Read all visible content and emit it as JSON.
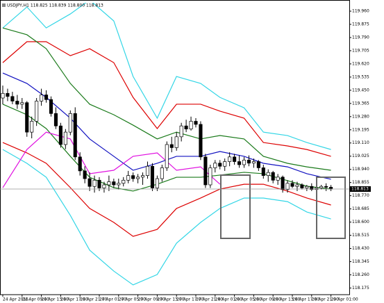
{
  "chart_data": {
    "type": "candlestick",
    "title": "USDJPY,H1  118.825 118.839 118.800 118.813",
    "categories": [
      "24 Apr 2015",
      null,
      null,
      null,
      "24 Apr 09:00",
      null,
      null,
      null,
      "24 Apr 13:00",
      null,
      null,
      null,
      "24 Apr 17:00",
      null,
      null,
      null,
      "24 Apr 21:00",
      null,
      null,
      null,
      "27 Apr 01:00",
      null,
      null,
      null,
      "27 Apr 05:00",
      null,
      null,
      null,
      "27 Apr 09:00",
      null,
      null,
      null,
      "27 Apr 13:00",
      null,
      null,
      null,
      "27 Apr 17:00",
      null,
      null,
      null,
      "27 Apr 21:00",
      null,
      null,
      null,
      "28 Apr 01:00",
      null,
      null,
      null,
      "28 Apr 05:00",
      null,
      null,
      null,
      "28 Apr 09:00",
      null,
      null,
      null,
      "28 Apr 13:00",
      null,
      null,
      null,
      "28 Apr 17:00",
      null,
      null,
      null,
      "28 Apr 21:00",
      null,
      null,
      null,
      "29 Apr 01:00"
    ],
    "open": [
      119.4,
      119.43,
      119.41,
      119.38,
      119.36,
      119.37,
      119.18,
      119.25,
      119.38,
      119.42,
      119.39,
      119.3,
      119.22,
      119.1,
      119.18,
      119.3,
      119.02,
      118.93,
      118.88,
      118.83,
      118.87,
      118.82,
      118.84,
      118.86,
      118.84,
      118.85,
      118.87,
      118.9,
      118.88,
      118.89,
      118.9,
      118.96,
      118.82,
      118.88,
      118.95,
      119.1,
      119.08,
      119.15,
      119.22,
      119.2,
      119.25,
      119.23,
      119.02,
      118.84,
      118.95,
      118.98,
      118.96,
      118.99,
      119.02,
      118.99,
      118.97,
      119.0,
      118.98,
      118.99,
      118.95,
      118.9,
      118.92,
      118.87,
      118.89,
      118.81,
      118.85,
      118.83,
      118.84,
      118.82,
      118.83,
      118.81,
      118.82,
      118.83,
      118.825
    ],
    "high": [
      119.48,
      119.46,
      119.44,
      119.42,
      119.4,
      119.38,
      119.28,
      119.4,
      119.46,
      119.45,
      119.41,
      119.34,
      119.24,
      119.2,
      119.32,
      119.34,
      119.05,
      118.96,
      118.92,
      118.9,
      118.89,
      118.86,
      118.9,
      118.88,
      118.88,
      118.89,
      118.93,
      118.92,
      118.91,
      118.92,
      118.99,
      118.98,
      118.9,
      118.97,
      119.12,
      119.15,
      119.18,
      119.24,
      119.26,
      119.28,
      119.27,
      119.25,
      119.04,
      118.97,
      119.0,
      119.0,
      119.01,
      119.05,
      119.04,
      119.03,
      119.02,
      119.03,
      119.01,
      119.0,
      118.97,
      118.94,
      118.93,
      118.91,
      118.9,
      118.87,
      118.87,
      118.86,
      118.85,
      118.84,
      118.85,
      118.84,
      118.84,
      118.85,
      118.839
    ],
    "low": [
      119.36,
      119.38,
      119.36,
      119.33,
      119.33,
      119.15,
      119.14,
      119.22,
      119.35,
      119.37,
      119.28,
      119.2,
      119.08,
      119.07,
      119.16,
      119.0,
      118.9,
      118.85,
      118.8,
      118.79,
      118.8,
      118.79,
      118.8,
      118.82,
      118.81,
      118.83,
      118.85,
      118.86,
      118.85,
      118.84,
      118.88,
      118.8,
      118.8,
      118.86,
      118.93,
      119.05,
      119.06,
      119.12,
      119.18,
      119.19,
      119.21,
      119.0,
      118.82,
      118.82,
      118.92,
      118.94,
      118.93,
      118.96,
      118.97,
      118.95,
      118.95,
      118.96,
      118.95,
      118.93,
      118.88,
      118.86,
      118.85,
      118.84,
      118.79,
      118.79,
      118.82,
      118.8,
      118.81,
      118.8,
      118.8,
      118.8,
      118.81,
      118.8,
      118.8
    ],
    "close": [
      119.43,
      119.41,
      119.38,
      119.36,
      119.37,
      119.18,
      119.25,
      119.38,
      119.42,
      119.39,
      119.3,
      119.22,
      119.1,
      119.18,
      119.3,
      119.02,
      118.93,
      118.88,
      118.83,
      118.87,
      118.82,
      118.84,
      118.86,
      118.84,
      118.85,
      118.87,
      118.9,
      118.88,
      118.89,
      118.9,
      118.96,
      118.82,
      118.88,
      118.95,
      119.1,
      119.08,
      119.15,
      119.22,
      119.2,
      119.25,
      119.23,
      119.02,
      118.84,
      118.95,
      118.98,
      118.96,
      118.99,
      119.02,
      118.99,
      118.97,
      119.0,
      118.98,
      118.99,
      118.95,
      118.9,
      118.92,
      118.87,
      118.89,
      118.81,
      118.85,
      118.83,
      118.84,
      118.82,
      118.83,
      118.81,
      118.82,
      118.83,
      118.825,
      118.813
    ],
    "line_x": [
      0,
      5,
      9,
      14,
      18,
      23,
      27,
      32,
      36,
      41,
      45,
      50,
      54,
      59,
      63,
      68
    ],
    "lines": [
      {
        "color": "#33d6e6",
        "values": [
          119.852,
          119.987,
          119.852,
          119.942,
          120.032,
          119.897,
          119.539,
          119.27,
          119.539,
          119.494,
          119.404,
          119.337,
          119.18,
          119.158,
          119.113,
          119.068
        ]
      },
      {
        "color": "#33d6e6",
        "values": [
          119.068,
          118.979,
          118.889,
          118.643,
          118.419,
          118.284,
          118.195,
          118.262,
          118.464,
          118.598,
          118.688,
          118.755,
          118.755,
          118.732,
          118.665,
          118.62
        ]
      },
      {
        "color": "#dd0000",
        "values": [
          119.628,
          119.763,
          119.763,
          119.673,
          119.718,
          119.628,
          119.404,
          119.203,
          119.36,
          119.36,
          119.315,
          119.27,
          119.113,
          119.091,
          119.068,
          119.024
        ]
      },
      {
        "color": "#dd0000",
        "values": [
          119.113,
          119.046,
          118.979,
          118.822,
          118.688,
          118.598,
          118.508,
          118.553,
          118.688,
          118.755,
          118.813,
          118.844,
          118.844,
          118.8,
          118.755,
          118.71
        ]
      },
      {
        "color": "#1a7a1a",
        "values": [
          119.852,
          119.808,
          119.718,
          119.494,
          119.36,
          119.292,
          119.225,
          119.136,
          119.18,
          119.136,
          119.158,
          119.136,
          119.024,
          118.979,
          118.956,
          118.934
        ]
      },
      {
        "color": "#1a7a1a",
        "values": [
          119.36,
          119.292,
          119.203,
          119.024,
          118.889,
          118.822,
          118.8,
          118.844,
          118.889,
          118.889,
          118.903,
          118.921,
          118.912,
          118.867,
          118.831,
          118.813
        ]
      },
      {
        "color": "#1010c0",
        "values": [
          119.561,
          119.494,
          119.404,
          119.27,
          119.136,
          119.024,
          118.934,
          118.979,
          119.024,
          119.024,
          119.055,
          119.024,
          118.979,
          118.956,
          118.912,
          118.876
        ]
      },
      {
        "color": "#e010e0",
        "values": [
          118.822,
          119.068,
          119.18,
          119.136,
          118.912,
          118.934,
          119.024,
          119.046,
          118.934,
          118.956,
          118.844,
          null,
          null,
          null,
          null,
          null
        ]
      }
    ],
    "current_price": 118.813,
    "ylim": [
      118.132,
      120.014
    ],
    "yticks": [
      {
        "value": 119.96,
        "label": "119.960"
      },
      {
        "value": 119.875,
        "label": "119.875"
      },
      {
        "value": 119.79,
        "label": "119.790"
      },
      {
        "value": 119.705,
        "label": "119.705"
      },
      {
        "value": 119.62,
        "label": "119.620"
      },
      {
        "value": 119.535,
        "label": "119.535"
      },
      {
        "value": 119.45,
        "label": "119.450"
      },
      {
        "value": 119.365,
        "label": "119.365"
      },
      {
        "value": 119.28,
        "label": "119.280"
      },
      {
        "value": 119.195,
        "label": "119.195"
      },
      {
        "value": 119.11,
        "label": "119.110"
      },
      {
        "value": 119.025,
        "label": "119.025"
      },
      {
        "value": 118.94,
        "label": "118.940"
      },
      {
        "value": 118.855,
        "label": "118.855"
      },
      {
        "value": 118.77,
        "label": "118.770"
      },
      {
        "value": 118.685,
        "label": "118.685"
      },
      {
        "value": 118.6,
        "label": "118.600"
      },
      {
        "value": 118.515,
        "label": "118.515"
      },
      {
        "value": 118.43,
        "label": "118.430"
      },
      {
        "value": 118.345,
        "label": "118.345"
      },
      {
        "value": 118.26,
        "label": "118.260"
      },
      {
        "value": 118.175,
        "label": "118.175"
      }
    ],
    "grid": false
  }
}
